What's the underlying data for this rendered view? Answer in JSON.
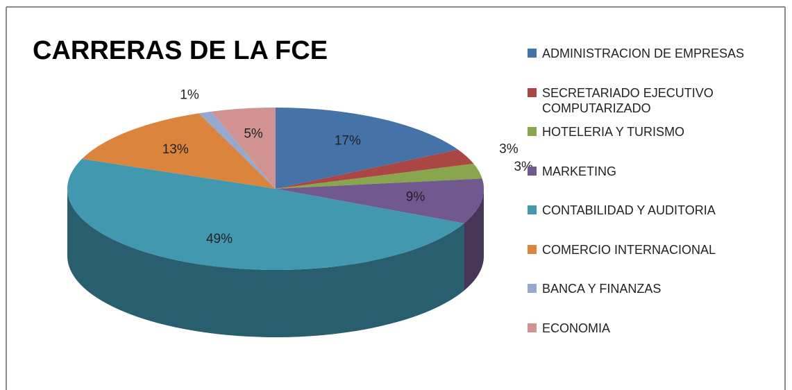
{
  "chart_data": {
    "type": "pie",
    "title": "CARRERAS DE LA FCE",
    "categories": [
      "ADMINISTRACION DE EMPRESAS",
      "SECRETARIADO EJECUTIVO COMPUTARIZADO",
      "HOTELERIA Y TURISMO",
      "MARKETING",
      "CONTABILIDAD Y AUDITORIA",
      "COMERCIO INTERNACIONAL",
      "BANCA Y FINANZAS",
      "ECONOMIA"
    ],
    "values": [
      17,
      3,
      3,
      9,
      49,
      13,
      1,
      5
    ],
    "value_labels": [
      "17%",
      "3%",
      "3%",
      "9%",
      "49%",
      "13%",
      "1%",
      "5%"
    ],
    "colors": [
      "#4572a7",
      "#aa4643",
      "#89a54e",
      "#71588f",
      "#4198af",
      "#db843d",
      "#93a9cf",
      "#d19392"
    ],
    "legend": "right"
  }
}
